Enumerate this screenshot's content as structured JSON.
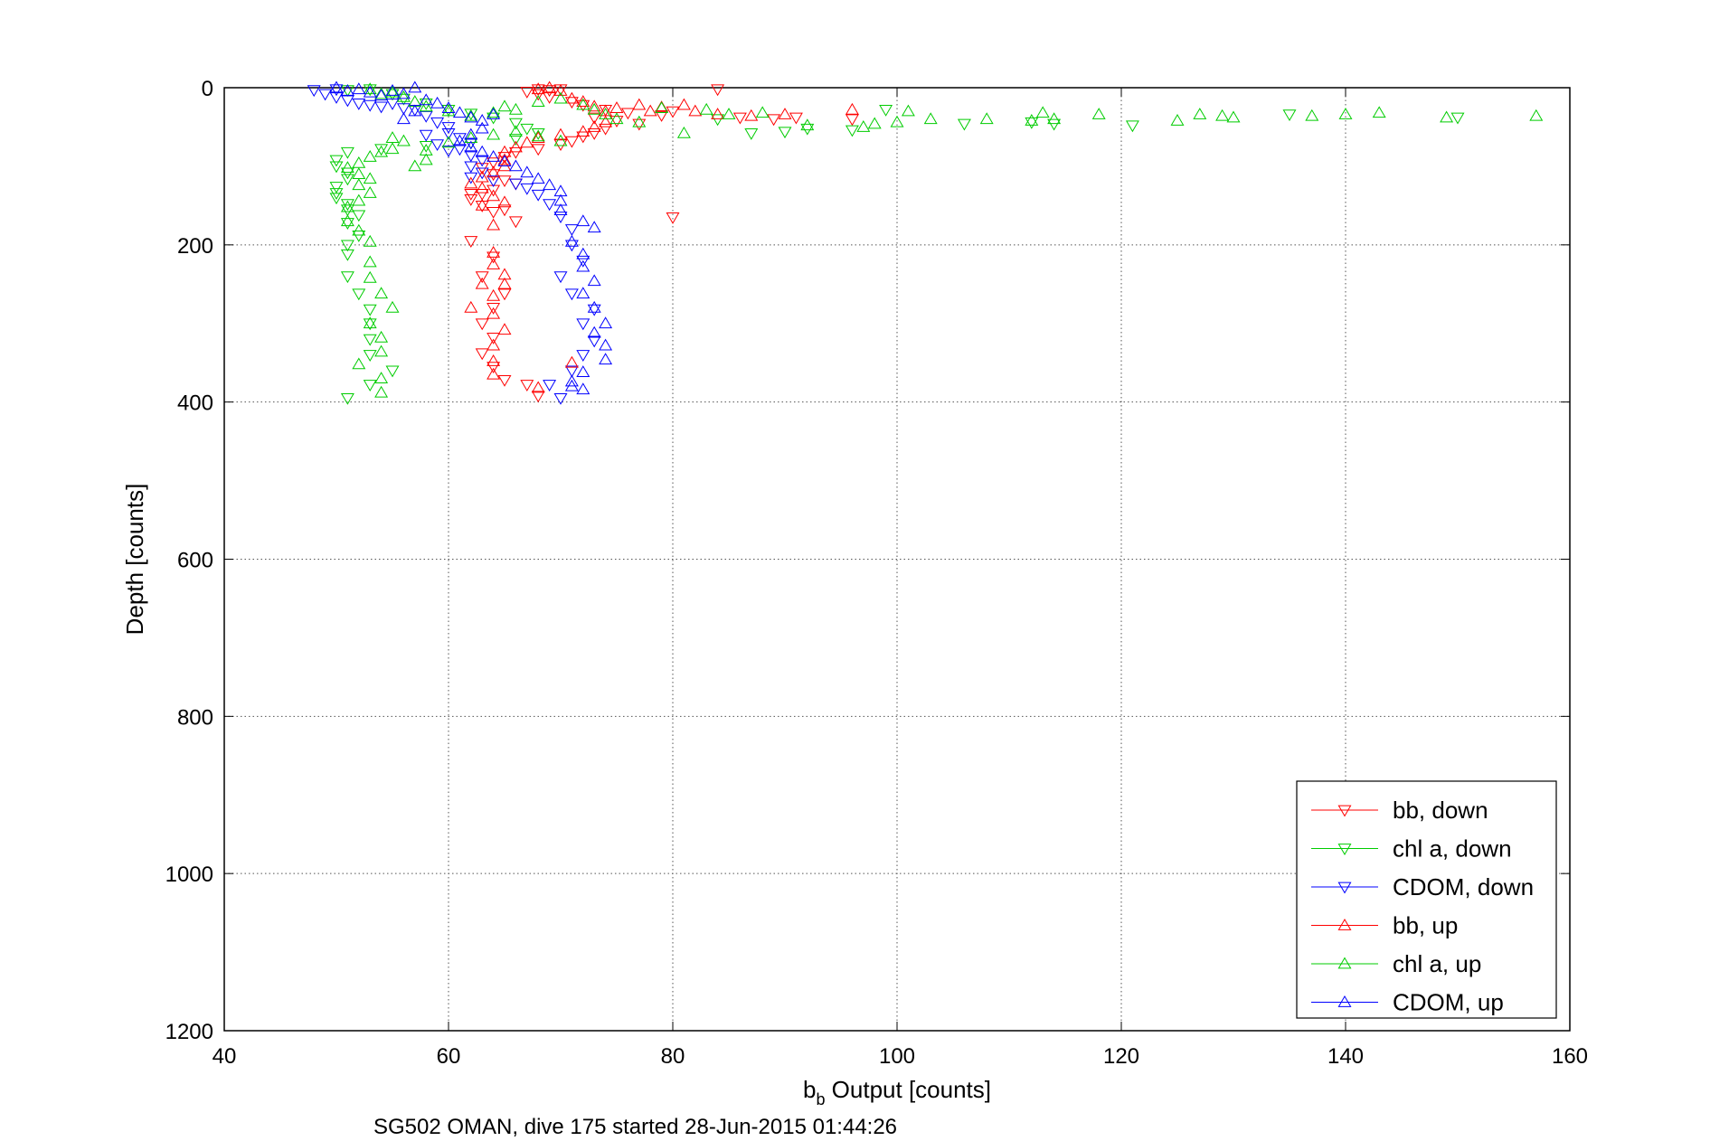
{
  "caption": "SG502 OMAN, dive 175 started 28-Jun-2015 01:44:26",
  "chart_data": {
    "type": "scatter",
    "xlabel_main": "b",
    "xlabel_sub": "b",
    "xlabel_rest": " Output [counts]",
    "ylabel": "Depth [counts]",
    "xlim": [
      40,
      160
    ],
    "ylim": [
      0,
      1200
    ],
    "y_reversed": true,
    "x_ticks": [
      40,
      60,
      80,
      100,
      120,
      140,
      160
    ],
    "y_ticks": [
      0,
      200,
      400,
      600,
      800,
      1000,
      1200
    ],
    "x_tick_labels": [
      "40",
      "60",
      "80",
      "100",
      "120",
      "140",
      "160"
    ],
    "y_tick_labels": [
      "0",
      "200",
      "400",
      "600",
      "800",
      "1000",
      "1200"
    ],
    "grid": true,
    "legend_position": "bottom-right",
    "series": [
      {
        "name": "bb, down",
        "color": "#ff0000",
        "marker": "triangle-down",
        "points": [
          [
            67,
            5
          ],
          [
            68,
            2
          ],
          [
            69,
            3
          ],
          [
            70,
            2
          ],
          [
            68,
            8
          ],
          [
            69,
            12
          ],
          [
            71,
            18
          ],
          [
            72,
            22
          ],
          [
            74,
            28
          ],
          [
            76,
            32
          ],
          [
            79,
            35
          ],
          [
            80,
            30
          ],
          [
            84,
            2
          ],
          [
            86,
            38
          ],
          [
            89,
            40
          ],
          [
            91,
            38
          ],
          [
            96,
            40
          ],
          [
            73,
            38
          ],
          [
            75,
            42
          ],
          [
            77,
            46
          ],
          [
            74,
            52
          ],
          [
            73,
            58
          ],
          [
            72,
            62
          ],
          [
            71,
            68
          ],
          [
            70,
            72
          ],
          [
            68,
            78
          ],
          [
            66,
            82
          ],
          [
            65,
            88
          ],
          [
            64,
            95
          ],
          [
            63,
            102
          ],
          [
            64,
            110
          ],
          [
            65,
            118
          ],
          [
            66,
            122
          ],
          [
            64,
            130
          ],
          [
            63,
            135
          ],
          [
            62,
            142
          ],
          [
            63,
            150
          ],
          [
            64,
            158
          ],
          [
            66,
            170
          ],
          [
            62,
            195
          ],
          [
            64,
            215
          ],
          [
            63,
            240
          ],
          [
            65,
            262
          ],
          [
            64,
            280
          ],
          [
            63,
            300
          ],
          [
            64,
            318
          ],
          [
            63,
            338
          ],
          [
            64,
            355
          ],
          [
            65,
            372
          ],
          [
            67,
            378
          ],
          [
            68,
            392
          ],
          [
            80,
            165
          ],
          [
            65,
            155
          ],
          [
            62,
            135
          ]
        ]
      },
      {
        "name": "chl a, down",
        "color": "#00cc00",
        "marker": "triangle-down",
        "points": [
          [
            51,
            3
          ],
          [
            53,
            2
          ],
          [
            55,
            8
          ],
          [
            56,
            14
          ],
          [
            58,
            20
          ],
          [
            60,
            28
          ],
          [
            62,
            33
          ],
          [
            64,
            38
          ],
          [
            66,
            45
          ],
          [
            67,
            52
          ],
          [
            68,
            58
          ],
          [
            66,
            65
          ],
          [
            62,
            70
          ],
          [
            58,
            74
          ],
          [
            54,
            78
          ],
          [
            51,
            82
          ],
          [
            50,
            92
          ],
          [
            50,
            100
          ],
          [
            51,
            108
          ],
          [
            51,
            116
          ],
          [
            50,
            126
          ],
          [
            50,
            134
          ],
          [
            50,
            140
          ],
          [
            51,
            148
          ],
          [
            51,
            155
          ],
          [
            52,
            162
          ],
          [
            51,
            172
          ],
          [
            52,
            188
          ],
          [
            51,
            200
          ],
          [
            51,
            212
          ],
          [
            51,
            240
          ],
          [
            52,
            262
          ],
          [
            53,
            282
          ],
          [
            53,
            300
          ],
          [
            53,
            320
          ],
          [
            53,
            340
          ],
          [
            55,
            360
          ],
          [
            53,
            378
          ],
          [
            51,
            395
          ],
          [
            84,
            40
          ],
          [
            87,
            58
          ],
          [
            90,
            56
          ],
          [
            92,
            52
          ],
          [
            96,
            54
          ],
          [
            106,
            46
          ],
          [
            112,
            44
          ],
          [
            114,
            46
          ],
          [
            121,
            48
          ],
          [
            135,
            34
          ],
          [
            150,
            38
          ],
          [
            99,
            28
          ]
        ]
      },
      {
        "name": "CDOM, down",
        "color": "#0000ff",
        "marker": "triangle-down",
        "points": [
          [
            48,
            3
          ],
          [
            49,
            8
          ],
          [
            50,
            2
          ],
          [
            50,
            12
          ],
          [
            51,
            16
          ],
          [
            52,
            20
          ],
          [
            53,
            22
          ],
          [
            54,
            24
          ],
          [
            55,
            20
          ],
          [
            56,
            26
          ],
          [
            57,
            28
          ],
          [
            58,
            36
          ],
          [
            59,
            44
          ],
          [
            60,
            50
          ],
          [
            60,
            58
          ],
          [
            61,
            64
          ],
          [
            62,
            70
          ],
          [
            61,
            78
          ],
          [
            62,
            86
          ],
          [
            63,
            92
          ],
          [
            62,
            100
          ],
          [
            63,
            108
          ],
          [
            62,
            114
          ],
          [
            64,
            118
          ],
          [
            66,
            122
          ],
          [
            67,
            128
          ],
          [
            68,
            136
          ],
          [
            69,
            148
          ],
          [
            70,
            164
          ],
          [
            71,
            180
          ],
          [
            71,
            200
          ],
          [
            72,
            220
          ],
          [
            70,
            240
          ],
          [
            71,
            262
          ],
          [
            73,
            282
          ],
          [
            72,
            300
          ],
          [
            73,
            322
          ],
          [
            72,
            340
          ],
          [
            71,
            360
          ],
          [
            69,
            378
          ],
          [
            70,
            395
          ],
          [
            58,
            60
          ],
          [
            59,
            72
          ],
          [
            60,
            80
          ]
        ]
      },
      {
        "name": "bb, up",
        "color": "#ff0000",
        "marker": "triangle-up",
        "points": [
          [
            68,
            2
          ],
          [
            69,
            0
          ],
          [
            70,
            4
          ],
          [
            71,
            14
          ],
          [
            72,
            18
          ],
          [
            73,
            24
          ],
          [
            74,
            30
          ],
          [
            75,
            26
          ],
          [
            77,
            22
          ],
          [
            78,
            30
          ],
          [
            79,
            25
          ],
          [
            81,
            22
          ],
          [
            82,
            30
          ],
          [
            84,
            34
          ],
          [
            87,
            36
          ],
          [
            90,
            34
          ],
          [
            96,
            28
          ],
          [
            74,
            44
          ],
          [
            73,
            50
          ],
          [
            72,
            56
          ],
          [
            70,
            60
          ],
          [
            68,
            64
          ],
          [
            67,
            70
          ],
          [
            66,
            76
          ],
          [
            65,
            82
          ],
          [
            65,
            92
          ],
          [
            65,
            100
          ],
          [
            64,
            108
          ],
          [
            63,
            114
          ],
          [
            62,
            122
          ],
          [
            63,
            128
          ],
          [
            64,
            138
          ],
          [
            65,
            146
          ],
          [
            63,
            150
          ],
          [
            64,
            175
          ],
          [
            64,
            210
          ],
          [
            64,
            225
          ],
          [
            65,
            238
          ],
          [
            65,
            250
          ],
          [
            64,
            265
          ],
          [
            64,
            288
          ],
          [
            65,
            308
          ],
          [
            64,
            328
          ],
          [
            64,
            348
          ],
          [
            64,
            365
          ],
          [
            71,
            350
          ],
          [
            68,
            382
          ],
          [
            62,
            280
          ],
          [
            63,
            250
          ]
        ]
      },
      {
        "name": "chl a, up",
        "color": "#00cc00",
        "marker": "triangle-up",
        "points": [
          [
            53,
            2
          ],
          [
            54,
            8
          ],
          [
            55,
            6
          ],
          [
            56,
            12
          ],
          [
            57,
            18
          ],
          [
            58,
            24
          ],
          [
            60,
            30
          ],
          [
            62,
            36
          ],
          [
            64,
            32
          ],
          [
            65,
            24
          ],
          [
            66,
            28
          ],
          [
            68,
            18
          ],
          [
            70,
            14
          ],
          [
            72,
            22
          ],
          [
            73,
            28
          ],
          [
            74,
            34
          ],
          [
            75,
            40
          ],
          [
            77,
            44
          ],
          [
            79,
            26
          ],
          [
            83,
            28
          ],
          [
            85,
            34
          ],
          [
            88,
            32
          ],
          [
            98,
            46
          ],
          [
            101,
            30
          ],
          [
            103,
            40
          ],
          [
            108,
            40
          ],
          [
            112,
            42
          ],
          [
            113,
            32
          ],
          [
            118,
            34
          ],
          [
            125,
            42
          ],
          [
            127,
            34
          ],
          [
            129,
            36
          ],
          [
            130,
            38
          ],
          [
            137,
            36
          ],
          [
            140,
            34
          ],
          [
            143,
            32
          ],
          [
            149,
            38
          ],
          [
            157,
            36
          ],
          [
            55,
            64
          ],
          [
            56,
            68
          ],
          [
            55,
            78
          ],
          [
            54,
            82
          ],
          [
            53,
            88
          ],
          [
            52,
            96
          ],
          [
            51,
            102
          ],
          [
            52,
            110
          ],
          [
            53,
            116
          ],
          [
            52,
            124
          ],
          [
            53,
            134
          ],
          [
            52,
            144
          ],
          [
            51,
            152
          ],
          [
            51,
            170
          ],
          [
            52,
            182
          ],
          [
            53,
            196
          ],
          [
            53,
            222
          ],
          [
            53,
            242
          ],
          [
            54,
            262
          ],
          [
            55,
            280
          ],
          [
            53,
            300
          ],
          [
            54,
            318
          ],
          [
            54,
            336
          ],
          [
            52,
            352
          ],
          [
            54,
            370
          ],
          [
            54,
            388
          ],
          [
            57,
            100
          ],
          [
            58,
            92
          ],
          [
            58,
            80
          ],
          [
            60,
            70
          ],
          [
            62,
            64
          ],
          [
            64,
            60
          ],
          [
            66,
            56
          ],
          [
            68,
            62
          ],
          [
            70,
            68
          ],
          [
            81,
            58
          ],
          [
            92,
            48
          ],
          [
            97,
            50
          ],
          [
            100,
            44
          ],
          [
            114,
            40
          ]
        ]
      },
      {
        "name": "CDOM, up",
        "color": "#0000ff",
        "marker": "triangle-up",
        "points": [
          [
            50,
            0
          ],
          [
            51,
            4
          ],
          [
            52,
            2
          ],
          [
            53,
            6
          ],
          [
            54,
            10
          ],
          [
            55,
            4
          ],
          [
            56,
            8
          ],
          [
            57,
            0
          ],
          [
            58,
            16
          ],
          [
            59,
            20
          ],
          [
            60,
            26
          ],
          [
            61,
            32
          ],
          [
            62,
            38
          ],
          [
            63,
            42
          ],
          [
            64,
            34
          ],
          [
            63,
            52
          ],
          [
            62,
            60
          ],
          [
            61,
            68
          ],
          [
            62,
            76
          ],
          [
            63,
            82
          ],
          [
            64,
            88
          ],
          [
            65,
            94
          ],
          [
            66,
            100
          ],
          [
            67,
            108
          ],
          [
            68,
            116
          ],
          [
            69,
            124
          ],
          [
            70,
            132
          ],
          [
            70,
            144
          ],
          [
            70,
            156
          ],
          [
            72,
            170
          ],
          [
            73,
            178
          ],
          [
            71,
            196
          ],
          [
            72,
            212
          ],
          [
            72,
            228
          ],
          [
            73,
            246
          ],
          [
            72,
            262
          ],
          [
            73,
            280
          ],
          [
            74,
            300
          ],
          [
            73,
            312
          ],
          [
            74,
            328
          ],
          [
            74,
            346
          ],
          [
            72,
            362
          ],
          [
            72,
            384
          ],
          [
            71,
            380
          ],
          [
            71,
            374
          ],
          [
            57,
            30
          ],
          [
            56,
            40
          ]
        ]
      }
    ]
  }
}
